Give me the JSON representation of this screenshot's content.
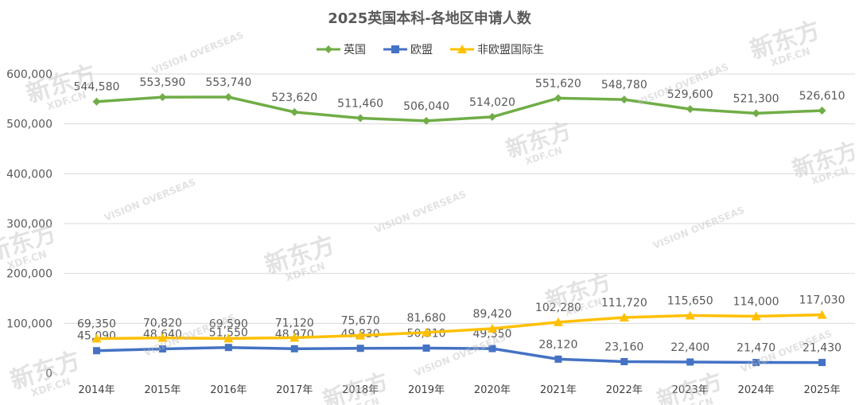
{
  "chart_data": {
    "type": "line",
    "title": "2025英国本科-各地区申请人数",
    "categories": [
      "2014年",
      "2015年",
      "2016年",
      "2017年",
      "2018年",
      "2019年",
      "2020年",
      "2021年",
      "2022年",
      "2023年",
      "2024年",
      "2025年"
    ],
    "ylim": [
      0,
      600000
    ],
    "yticks": [
      "0",
      "100,000",
      "200,000",
      "300,000",
      "400,000",
      "500,000",
      "600,000"
    ],
    "grid": true,
    "legend_position": "top",
    "series": [
      {
        "name": "英国",
        "color": "#70ad47",
        "marker": "diamond",
        "values": [
          544580,
          553590,
          553740,
          523620,
          511460,
          506040,
          514020,
          551620,
          548780,
          529600,
          521300,
          526610
        ],
        "labels": [
          "544,580",
          "553,590",
          "553,740",
          "523,620",
          "511,460",
          "506,040",
          "514,020",
          "551,620",
          "548,780",
          "529,600",
          "521,300",
          "526,610"
        ]
      },
      {
        "name": "欧盟",
        "color": "#4472c4",
        "marker": "square",
        "values": [
          45090,
          48640,
          51550,
          48970,
          49830,
          50310,
          49350,
          28120,
          23160,
          22400,
          21470,
          21430
        ],
        "labels": [
          "45,090",
          "48,640",
          "51,550",
          "48,970",
          "49,830",
          "50,310",
          "49,350",
          "28,120",
          "23,160",
          "22,400",
          "21,470",
          "21,430"
        ]
      },
      {
        "name": "非欧盟国际生",
        "color": "#ffc000",
        "marker": "triangle",
        "values": [
          69350,
          70820,
          69590,
          71120,
          75670,
          81680,
          89420,
          102280,
          111720,
          115650,
          114000,
          117030
        ],
        "labels": [
          "69,350",
          "70,820",
          "69,590",
          "71,120",
          "75,670",
          "81,680",
          "89,420",
          "102,280",
          "111,720",
          "115,650",
          "114,000",
          "117,030"
        ]
      }
    ]
  },
  "watermarks": {
    "brand": "新东方",
    "domain": "XDF.CN",
    "vision": "VISION OVERSEAS"
  }
}
